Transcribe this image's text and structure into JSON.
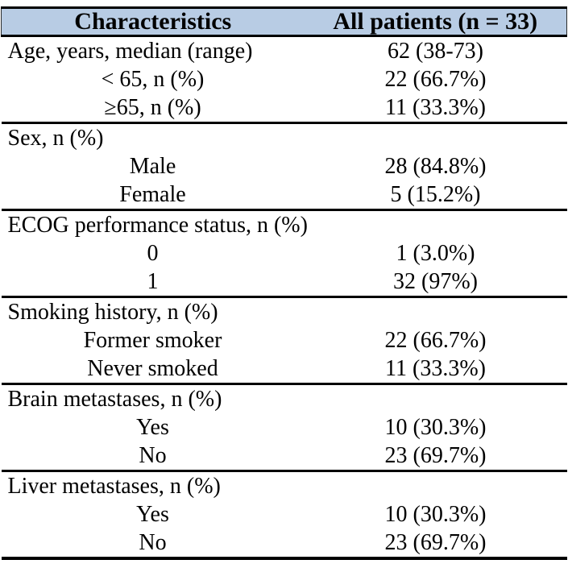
{
  "table": {
    "title_semantic": "Patient baseline characteristics table",
    "colors": {
      "header_bg": "#b8cce4",
      "border": "#000000",
      "text": "#000000"
    },
    "header": {
      "characteristics": "Characteristics",
      "all_patients": "All patients (n = 33)"
    },
    "sections": [
      {
        "rows": [
          {
            "label": "Age, years, median (range)",
            "value": "62 (38-73)"
          },
          {
            "label": "< 65, n (%)",
            "value": "22 (66.7%)"
          },
          {
            "label": "≥65, n (%)",
            "value": "11 (33.3%)"
          }
        ]
      },
      {
        "rows": [
          {
            "label": "Sex, n (%)",
            "value": ""
          },
          {
            "label": "Male",
            "value": "28 (84.8%)"
          },
          {
            "label": "Female",
            "value": "5 (15.2%)"
          }
        ]
      },
      {
        "rows": [
          {
            "label": "ECOG performance status, n (%)",
            "value": ""
          },
          {
            "label": "0",
            "value": "1 (3.0%)"
          },
          {
            "label": "1",
            "value": "32 (97%)"
          }
        ]
      },
      {
        "rows": [
          {
            "label": "Smoking history, n (%)",
            "value": ""
          },
          {
            "label": "Former smoker",
            "value": "22 (66.7%)"
          },
          {
            "label": "Never smoked",
            "value": "11 (33.3%)"
          }
        ]
      },
      {
        "rows": [
          {
            "label": "Brain metastases, n (%)",
            "value": ""
          },
          {
            "label": "Yes",
            "value": "10 (30.3%)"
          },
          {
            "label": "No",
            "value": "23 (69.7%)"
          }
        ]
      },
      {
        "rows": [
          {
            "label": "Liver metastases, n (%)",
            "value": ""
          },
          {
            "label": "Yes",
            "value": "10 (30.3%)"
          },
          {
            "label": "No",
            "value": "23 (69.7%)"
          }
        ]
      }
    ]
  },
  "chart_data": {
    "type": "table",
    "columns": [
      "Characteristics",
      "All patients (n = 33)"
    ],
    "rows": [
      [
        "Age, years, median (range)",
        "62 (38-73)"
      ],
      [
        "< 65, n (%)",
        "22 (66.7%)"
      ],
      [
        "≥65, n (%)",
        "11 (33.3%)"
      ],
      [
        "Sex, n (%)",
        ""
      ],
      [
        "Male",
        "28 (84.8%)"
      ],
      [
        "Female",
        "5 (15.2%)"
      ],
      [
        "ECOG performance status, n (%)",
        ""
      ],
      [
        "0",
        "1 (3.0%)"
      ],
      [
        "1",
        "32 (97%)"
      ],
      [
        "Smoking history, n (%)",
        ""
      ],
      [
        "Former smoker",
        "22 (66.7%)"
      ],
      [
        "Never smoked",
        "11 (33.3%)"
      ],
      [
        "Brain metastases, n (%)",
        ""
      ],
      [
        "Yes",
        "10 (30.3%)"
      ],
      [
        "No",
        "23 (69.7%)"
      ],
      [
        "Liver metastases, n (%)",
        ""
      ],
      [
        "Yes",
        "10 (30.3%)"
      ],
      [
        "No",
        "23 (69.7%)"
      ]
    ]
  }
}
